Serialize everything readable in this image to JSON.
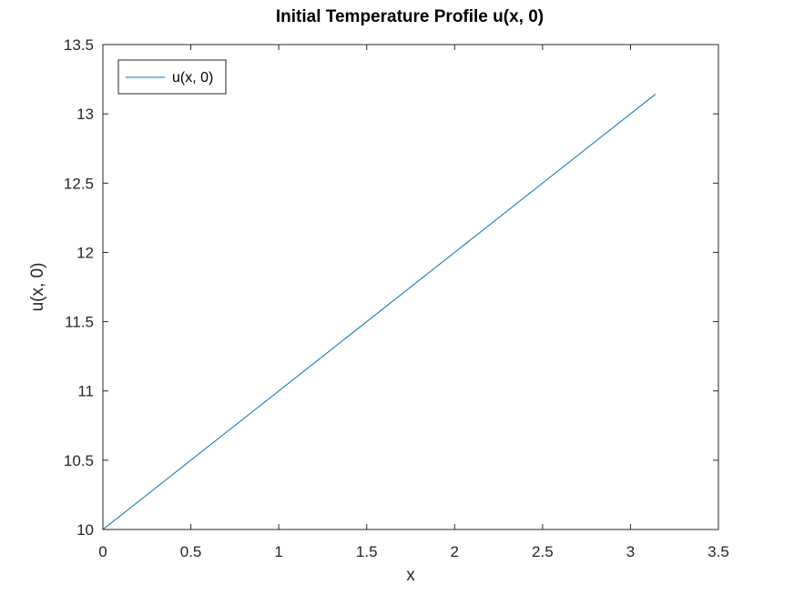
{
  "chart_data": {
    "type": "line",
    "title": "Initial Temperature Profile u(x, 0)",
    "xlabel": "x",
    "ylabel": "u(x, 0)",
    "xlim": [
      0,
      3.5
    ],
    "ylim": [
      10,
      13.5
    ],
    "xticks": [
      0,
      0.5,
      1,
      1.5,
      2,
      2.5,
      3,
      3.5
    ],
    "xtick_labels": [
      "0",
      "0.5",
      "1",
      "1.5",
      "2",
      "2.5",
      "3",
      "3.5"
    ],
    "yticks": [
      10,
      10.5,
      11,
      11.5,
      12,
      12.5,
      13,
      13.5
    ],
    "ytick_labels": [
      "10",
      "10.5",
      "11",
      "11.5",
      "12",
      "12.5",
      "13",
      "13.5"
    ],
    "grid": false,
    "legend_position": "top-left",
    "series": [
      {
        "name": "u(x, 0)",
        "color": "#0072bd",
        "x": [
          0,
          3.1416
        ],
        "y": [
          10,
          13.1416
        ]
      }
    ]
  }
}
